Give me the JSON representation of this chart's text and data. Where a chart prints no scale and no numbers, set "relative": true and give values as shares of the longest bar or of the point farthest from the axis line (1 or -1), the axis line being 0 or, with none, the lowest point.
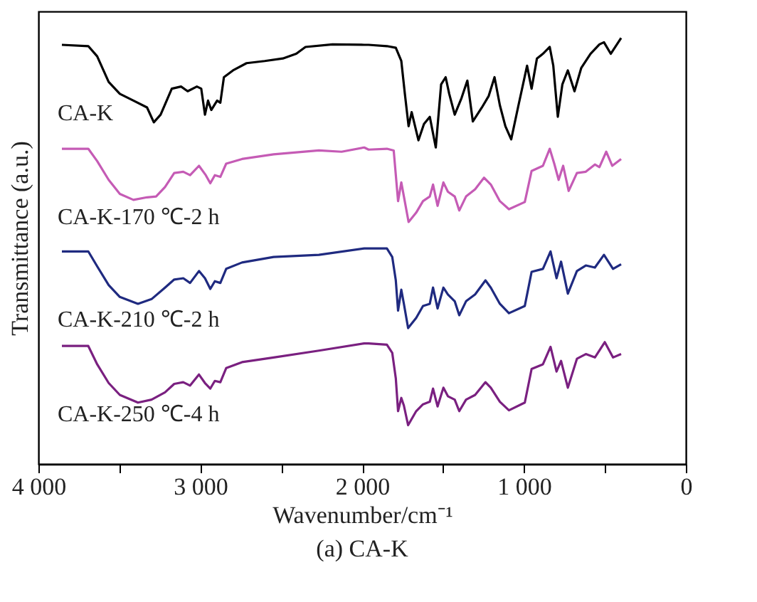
{
  "chart_data": {
    "type": "line",
    "title": "(a) CA-K",
    "xlabel": "Wavenumber/cm⁻¹",
    "ylabel": "Transmittance (a.u.)",
    "relative": true,
    "xlim": [
      4000,
      0
    ],
    "xticks": [
      {
        "value": 4000,
        "label": "4 000"
      },
      {
        "value": 3500,
        "label": null
      },
      {
        "value": 3000,
        "label": "3 000"
      },
      {
        "value": 2500,
        "label": null
      },
      {
        "value": 2000,
        "label": "2 000"
      },
      {
        "value": 1500,
        "label": null
      },
      {
        "value": 1000,
        "label": "1 000"
      },
      {
        "value": 500,
        "label": null
      },
      0
    ],
    "series": [
      {
        "name": "CA-K",
        "color": "#000000",
        "x": [
          3855,
          3692,
          3637,
          3566,
          3497,
          3413,
          3329,
          3287,
          3245,
          3176,
          3119,
          3078,
          3021,
          2994,
          2971,
          2952,
          2932,
          2896,
          2876,
          2854,
          2798,
          2714,
          2602,
          2490,
          2407,
          2350,
          2183,
          1987,
          1960,
          1847,
          1792,
          1758,
          1736,
          1713,
          1694,
          1652,
          1618,
          1582,
          1545,
          1512,
          1484,
          1462,
          1428,
          1386,
          1350,
          1316,
          1260,
          1218,
          1182,
          1149,
          1115,
          1079,
          1037,
          981,
          953,
          920,
          883,
          841,
          819,
          791,
          763,
          729,
          688,
          646,
          589,
          534,
          506,
          464,
          400
        ],
        "values": [
          0.984,
          0.981,
          0.957,
          0.897,
          0.869,
          0.853,
          0.837,
          0.802,
          0.82,
          0.881,
          0.886,
          0.875,
          0.886,
          0.881,
          0.82,
          0.853,
          0.831,
          0.853,
          0.848,
          0.908,
          0.924,
          0.941,
          0.946,
          0.952,
          0.963,
          0.979,
          0.985,
          0.984,
          0.984,
          0.981,
          0.977,
          0.946,
          0.869,
          0.793,
          0.826,
          0.76,
          0.798,
          0.815,
          0.743,
          0.891,
          0.908,
          0.869,
          0.82,
          0.859,
          0.9,
          0.804,
          0.837,
          0.864,
          0.908,
          0.842,
          0.793,
          0.762,
          0.837,
          0.935,
          0.881,
          0.952,
          0.963,
          0.979,
          0.935,
          0.815,
          0.891,
          0.924,
          0.875,
          0.93,
          0.963,
          0.985,
          0.99,
          0.963,
          1
        ]
      },
      {
        "name": "CA-K-170 ℃-2 h",
        "color": "#c55bb5",
        "x": [
          3855,
          3692,
          3637,
          3566,
          3497,
          3413,
          3329,
          3273,
          3218,
          3161,
          3105,
          3063,
          3008,
          2966,
          2938,
          2910,
          2876,
          2840,
          2742,
          2547,
          2267,
          2127,
          1987,
          1960,
          1847,
          1805,
          1778,
          1758,
          1742,
          1713,
          1666,
          1624,
          1582,
          1562,
          1534,
          1498,
          1470,
          1428,
          1400,
          1358,
          1302,
          1247,
          1205,
          1149,
          1093,
          995,
          953,
          883,
          841,
          813,
          786,
          758,
          724,
          673,
          618,
          562,
          534,
          492,
          455,
          400
        ],
        "values": [
          0.74,
          0.74,
          0.711,
          0.667,
          0.634,
          0.62,
          0.626,
          0.628,
          0.65,
          0.683,
          0.686,
          0.678,
          0.7,
          0.678,
          0.659,
          0.678,
          0.674,
          0.705,
          0.716,
          0.727,
          0.736,
          0.733,
          0.743,
          0.738,
          0.74,
          0.736,
          0.617,
          0.661,
          0.628,
          0.568,
          0.59,
          0.617,
          0.628,
          0.656,
          0.606,
          0.661,
          0.639,
          0.628,
          0.595,
          0.628,
          0.645,
          0.672,
          0.656,
          0.617,
          0.598,
          0.615,
          0.688,
          0.7,
          0.74,
          0.705,
          0.667,
          0.7,
          0.641,
          0.683,
          0.686,
          0.703,
          0.697,
          0.733,
          0.7,
          0.716
        ]
      },
      {
        "name": "CA-K-210 ℃-2 h",
        "color": "#1f2a80",
        "x": [
          3855,
          3692,
          3637,
          3566,
          3497,
          3385,
          3301,
          3218,
          3161,
          3105,
          3063,
          3008,
          2971,
          2938,
          2910,
          2876,
          2840,
          2742,
          2547,
          2267,
          1987,
          1960,
          1847,
          1814,
          1792,
          1778,
          1758,
          1742,
          1716,
          1666,
          1624,
          1582,
          1562,
          1534,
          1498,
          1470,
          1428,
          1400,
          1358,
          1302,
          1238,
          1205,
          1149,
          1093,
          995,
          953,
          883,
          836,
          799,
          771,
          729,
          673,
          618,
          562,
          506,
          450,
          400
        ],
        "values": [
          0.499,
          0.499,
          0.464,
          0.42,
          0.392,
          0.376,
          0.387,
          0.414,
          0.433,
          0.436,
          0.425,
          0.453,
          0.436,
          0.411,
          0.429,
          0.425,
          0.458,
          0.473,
          0.486,
          0.491,
          0.506,
          0.506,
          0.506,
          0.486,
          0.431,
          0.36,
          0.409,
          0.376,
          0.319,
          0.343,
          0.371,
          0.376,
          0.414,
          0.365,
          0.414,
          0.398,
          0.382,
          0.349,
          0.382,
          0.398,
          0.431,
          0.414,
          0.376,
          0.354,
          0.371,
          0.451,
          0.458,
          0.499,
          0.436,
          0.475,
          0.4,
          0.453,
          0.466,
          0.461,
          0.491,
          0.458,
          0.469
        ]
      },
      {
        "name": "CA-K-250 ℃-4 h",
        "color": "#7a2080",
        "x": [
          3855,
          3692,
          3637,
          3566,
          3497,
          3385,
          3301,
          3218,
          3161,
          3105,
          3063,
          3008,
          2971,
          2938,
          2910,
          2876,
          2840,
          2742,
          2547,
          2267,
          1987,
          1960,
          1847,
          1814,
          1792,
          1778,
          1758,
          1742,
          1716,
          1666,
          1624,
          1582,
          1562,
          1534,
          1498,
          1470,
          1428,
          1400,
          1358,
          1302,
          1238,
          1205,
          1149,
          1093,
          995,
          953,
          883,
          836,
          799,
          771,
          729,
          673,
          618,
          562,
          501,
          450,
          400
        ],
        "values": [
          0.277,
          0.277,
          0.234,
          0.19,
          0.162,
          0.144,
          0.151,
          0.168,
          0.188,
          0.192,
          0.184,
          0.21,
          0.19,
          0.177,
          0.195,
          0.192,
          0.225,
          0.239,
          0.25,
          0.266,
          0.283,
          0.283,
          0.28,
          0.261,
          0.201,
          0.124,
          0.155,
          0.137,
          0.091,
          0.124,
          0.14,
          0.146,
          0.177,
          0.135,
          0.179,
          0.159,
          0.151,
          0.124,
          0.151,
          0.162,
          0.192,
          0.179,
          0.146,
          0.126,
          0.144,
          0.223,
          0.234,
          0.275,
          0.217,
          0.242,
          0.179,
          0.247,
          0.258,
          0.25,
          0.286,
          0.25,
          0.258
        ]
      }
    ]
  }
}
